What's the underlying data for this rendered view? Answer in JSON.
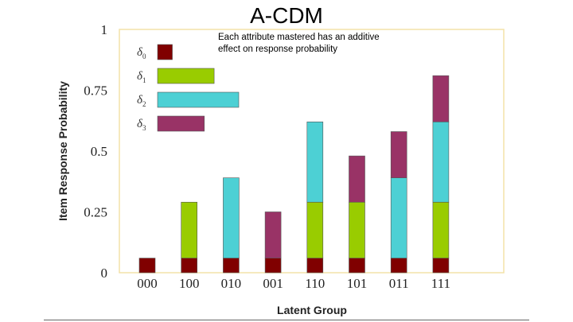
{
  "slide": {
    "title": "A-CDM",
    "note_line1": "Each attribute mastered has an additive",
    "note_line2": "effect on response probability"
  },
  "chart_data": {
    "type": "bar",
    "stacked": true,
    "xlabel": "Latent Group",
    "ylabel": "Item Response Probability",
    "ylim": [
      0,
      1
    ],
    "yticks": [
      {
        "value": 0,
        "label": "0"
      },
      {
        "value": 0.25,
        "label": "0.25"
      },
      {
        "value": 0.5,
        "label": "0.5"
      },
      {
        "value": 0.75,
        "label": "0.75"
      },
      {
        "value": 1,
        "label": "1"
      }
    ],
    "categories": [
      "000",
      "100",
      "010",
      "001",
      "110",
      "101",
      "011",
      "111"
    ],
    "series": [
      {
        "name": "δ0",
        "symbol": "δ",
        "subscript": "0",
        "color": "#800000",
        "legend_value": 0.06,
        "values": [
          0.06,
          0.06,
          0.06,
          0.06,
          0.06,
          0.06,
          0.06,
          0.06
        ]
      },
      {
        "name": "δ1",
        "symbol": "δ",
        "subscript": "1",
        "color": "#99cc00",
        "legend_value": 0.23,
        "values": [
          0,
          0.23,
          0,
          0,
          0.23,
          0.23,
          0,
          0.23
        ]
      },
      {
        "name": "δ2",
        "symbol": "δ",
        "subscript": "2",
        "color": "#4dd0d4",
        "legend_value": 0.33,
        "values": [
          0,
          0,
          0.33,
          0,
          0.33,
          0,
          0.33,
          0.33
        ]
      },
      {
        "name": "δ3",
        "symbol": "δ",
        "subscript": "3",
        "color": "#993366",
        "legend_value": 0.19,
        "values": [
          0,
          0,
          0,
          0.19,
          0,
          0.19,
          0.19,
          0.19
        ]
      }
    ],
    "grid": false,
    "legend_position": "top-left"
  }
}
